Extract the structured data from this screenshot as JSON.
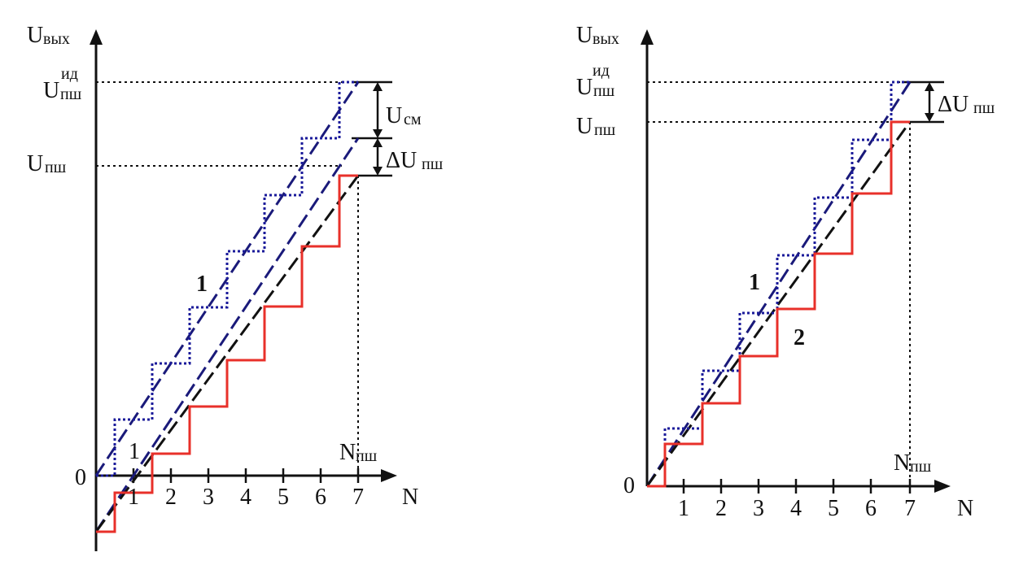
{
  "left": {
    "y_axis_label": "U",
    "y_axis_label_sub": "вых",
    "zero": "0",
    "x_axis_label": "N",
    "ticks": [
      "1",
      "2",
      "3",
      "4",
      "5",
      "6",
      "7"
    ],
    "u_ideal_label": "U",
    "u_ideal_sup": "ид",
    "u_ideal_sub": "пш",
    "u_label": "U",
    "u_sub": "пш",
    "offset_label": "U",
    "offset_sub": "см",
    "delta_label": "ΔU",
    "delta_sub": "пш",
    "n_label": "N",
    "n_sub": "пш",
    "curve1_label": "1",
    "offset_curve_label": "1"
  },
  "right": {
    "y_axis_label": "U",
    "y_axis_label_sub": "вых",
    "zero": "0",
    "x_axis_label": "N",
    "ticks": [
      "1",
      "2",
      "3",
      "4",
      "5",
      "6",
      "7"
    ],
    "u_ideal_label": "U",
    "u_ideal_sup": "ид",
    "u_ideal_sub": "пш",
    "u_label": "U",
    "u_sub": "пш",
    "delta_label": "ΔU",
    "delta_sub": "пш",
    "n_label": "N",
    "n_sub": "пш",
    "curve1_label": "1",
    "curve2_label": "2"
  },
  "colors": {
    "ideal_steps": "#1a1a9a",
    "real_steps": "#e8302a",
    "ideal_line": "#1a1a7a",
    "real_line": "#111111"
  }
}
